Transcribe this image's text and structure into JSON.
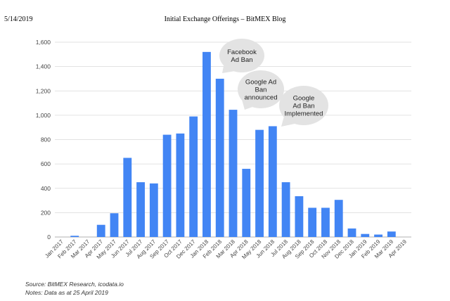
{
  "header": {
    "date": "5/14/2019",
    "title": "Initial Exchange Offerings – BitMEX Blog"
  },
  "footer": {
    "source": "Source: BitMEX Research, icodata.io",
    "notes": "Notes: Data as at 25 April 2019"
  },
  "colors": {
    "bar": "#4285f4",
    "grid": "#d9d9d9",
    "callout": "#e3e3e3"
  },
  "chart_data": {
    "type": "bar",
    "title": "",
    "xlabel": "",
    "ylabel": "",
    "ylim": [
      0,
      1600
    ],
    "yticks": [
      "0",
      "200",
      "400",
      "600",
      "800",
      "1,000",
      "1,200",
      "1,400",
      "1,600"
    ],
    "grid": true,
    "categories": [
      "Jan 2017",
      "Feb 2017",
      "Mar 2017",
      "Apr 2017",
      "May 2017",
      "Jun 2017",
      "Jul 2017",
      "Aug 2017",
      "Sep 2017",
      "Oct 2017",
      "Dec 2017",
      "Jan 2018",
      "Feb 2018",
      "Mar 2018",
      "Apr 2018",
      "May 2018",
      "Jun 2018",
      "Jul 2018",
      "Aug 2018",
      "Sep 2018",
      "Oct 2018",
      "Nov 2018",
      "Dec 2018",
      "Jan 2019",
      "Feb 2019",
      "Mar 2019",
      "Apr 2019"
    ],
    "values": [
      0,
      10,
      0,
      100,
      195,
      650,
      450,
      440,
      840,
      850,
      990,
      1520,
      1300,
      1045,
      560,
      880,
      910,
      450,
      335,
      240,
      240,
      305,
      70,
      25,
      20,
      45,
      0
    ],
    "annotations": [
      {
        "lines": [
          "Facebook",
          "Ad Ban"
        ],
        "category": "Jan 2018"
      },
      {
        "lines": [
          "Google Ad",
          "Ban",
          "announced"
        ],
        "category": "Mar 2018"
      },
      {
        "lines": [
          "Google",
          "Ad Ban",
          "Implemented"
        ],
        "category": "Jun 2018"
      }
    ]
  }
}
